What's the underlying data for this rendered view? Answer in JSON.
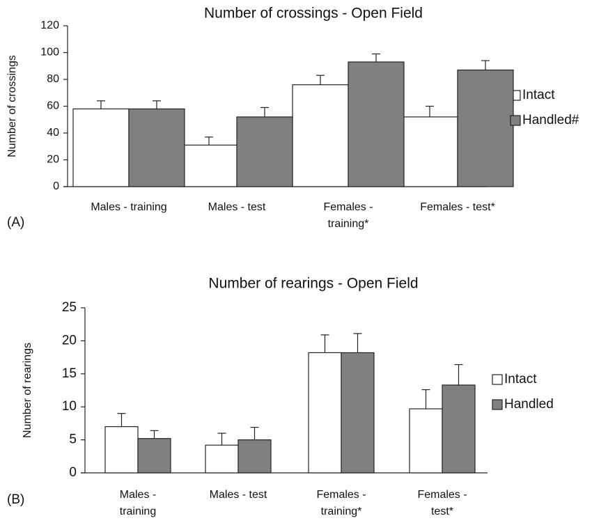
{
  "chart_data": [
    {
      "type": "bar",
      "title": "Number of crossings - Open Field",
      "y_label": "Number of crossings",
      "panel_label": "(A)",
      "categories": [
        [
          "Males - training"
        ],
        [
          "Males - test"
        ],
        [
          "Females -",
          "training*"
        ],
        [
          "Females - test*"
        ]
      ],
      "series": [
        {
          "name": "Intact",
          "color": "#ffffff",
          "values": [
            58,
            31,
            76,
            52
          ],
          "errors": [
            6,
            6,
            7,
            8
          ]
        },
        {
          "name": "Handled#",
          "color": "#808080",
          "values": [
            58,
            52,
            93,
            87
          ],
          "errors": [
            6,
            7,
            6,
            7
          ]
        }
      ],
      "ylim": [
        0,
        120
      ],
      "yticks": [
        0,
        20,
        40,
        60,
        80,
        100,
        120
      ],
      "legend": "right"
    },
    {
      "type": "bar",
      "title": "Number of rearings - Open Field",
      "y_label": "Number of rearings",
      "panel_label": "(B)",
      "categories": [
        [
          "Males -",
          "training"
        ],
        [
          "Males - test"
        ],
        [
          "Females -",
          "training*"
        ],
        [
          "Females -",
          "test*"
        ]
      ],
      "series": [
        {
          "name": "Intact",
          "color": "#ffffff",
          "values": [
            7,
            4.2,
            18.2,
            9.7
          ],
          "errors": [
            2,
            1.8,
            2.7,
            2.9
          ]
        },
        {
          "name": "Handled",
          "color": "#808080",
          "values": [
            5.2,
            5,
            18.2,
            13.3
          ],
          "errors": [
            1.2,
            1.9,
            2.9,
            3.1
          ]
        }
      ],
      "ylim": [
        0,
        25
      ],
      "yticks": [
        0,
        5,
        10,
        15,
        20,
        25
      ],
      "legend": "right"
    }
  ]
}
